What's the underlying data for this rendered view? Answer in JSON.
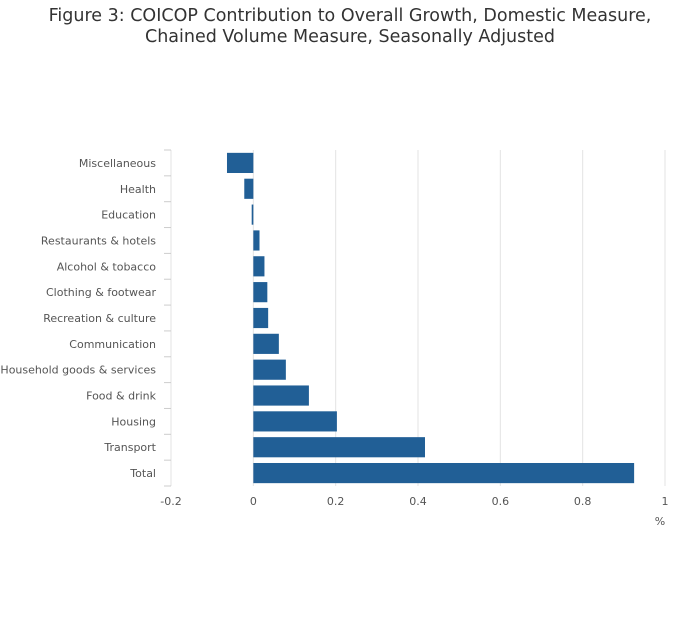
{
  "chart_data": {
    "type": "bar",
    "orientation": "horizontal",
    "title_line1": "Figure 3: COICOP Contribution to Overall Growth, Domestic Measure,",
    "title_line2": "Chained Volume Measure, Seasonally Adjusted",
    "xlabel": "%",
    "categories": [
      "Miscellaneous",
      "Health",
      "Education",
      "Restaurants & hotels",
      "Alcohol & tobacco",
      "Clothing & footwear",
      "Recreation & culture",
      "Communication",
      "Household goods & services",
      "Food & drink",
      "Housing",
      "Transport",
      "Total"
    ],
    "values": [
      -0.064,
      -0.022,
      -0.004,
      0.015,
      0.027,
      0.034,
      0.036,
      0.062,
      0.079,
      0.135,
      0.203,
      0.417,
      0.925
    ],
    "xlim": [
      -0.2,
      1.0
    ],
    "xticks": [
      "-0.2",
      "0",
      "0.2",
      "0.4",
      "0.6",
      "0.8",
      "1"
    ],
    "bar_color": "#215f96",
    "grid": true
  }
}
